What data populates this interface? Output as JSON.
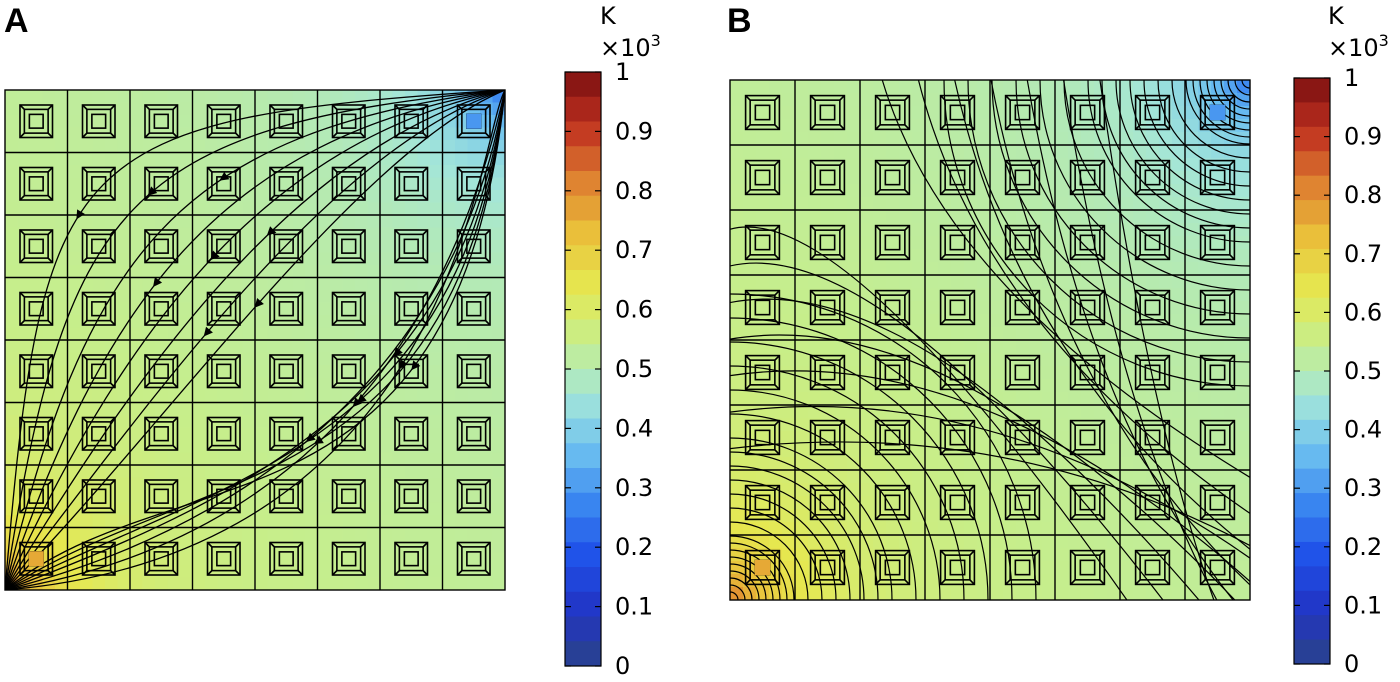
{
  "chart_data": [
    {
      "type": "heatmap",
      "panel_label": "A",
      "description_type": "temperature field with heat-flux streamlines",
      "grid": {
        "rows": 8,
        "cols": 8
      },
      "colorbar": {
        "unit": "K",
        "multiplier": "×10",
        "multiplier_exp": "3",
        "ticks": [
          "1",
          "0.9",
          "0.8",
          "0.7",
          "0.6",
          "0.5",
          "0.4",
          "0.3",
          "0.2",
          "0.1",
          "0"
        ],
        "range": [
          0,
          1
        ]
      },
      "field": {
        "hot_corner": "bottom-left",
        "cold_corner": "top-right",
        "hot_value": 0.72,
        "cold_value": 0.35,
        "center_value": 0.53
      },
      "overlay": "streamlines"
    },
    {
      "type": "heatmap",
      "panel_label": "B",
      "description_type": "temperature field with isotherm contours",
      "grid": {
        "rows": 8,
        "cols": 8
      },
      "colorbar": {
        "unit": "K",
        "multiplier": "×10",
        "multiplier_exp": "3",
        "ticks": [
          "1",
          "0.9",
          "0.8",
          "0.7",
          "0.6",
          "0.5",
          "0.4",
          "0.3",
          "0.2",
          "0.1",
          "0"
        ],
        "range": [
          0,
          1
        ]
      },
      "field": {
        "hot_corner": "bottom-left",
        "cold_corner": "top-right",
        "hot_value": 0.72,
        "cold_value": 0.35,
        "center_value": 0.53
      },
      "overlay": "contours"
    }
  ],
  "colors": {
    "colormap": [
      "#2a4488",
      "#2234c4",
      "#1e50e8",
      "#3a86f0",
      "#6cc0f0",
      "#a4e6d8",
      "#c6ee8c",
      "#e6e850",
      "#eac03a",
      "#de8030",
      "#c03020",
      "#7a1010"
    ]
  }
}
